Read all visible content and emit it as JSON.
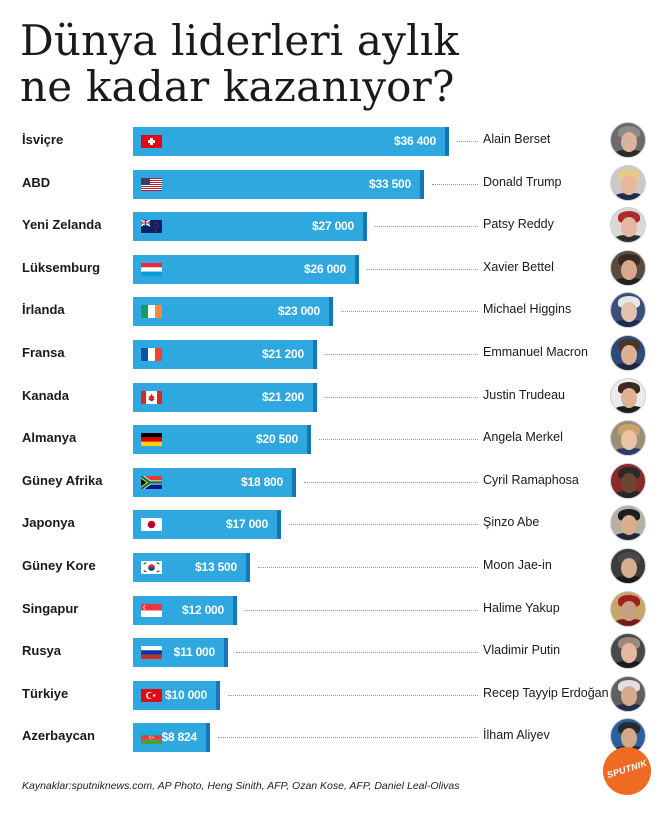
{
  "title": {
    "line1": "Dünya liderleri aylık",
    "line2": "ne kadar kazanıyor?"
  },
  "colors": {
    "bar": "#2ea8df",
    "bar_edge": "#1577b7",
    "text": "#1a1a1a"
  },
  "chart_data": {
    "type": "bar",
    "orientation": "horizontal",
    "unit": "$",
    "xlim": [
      0,
      36400
    ],
    "grid": false,
    "categories": [
      "İsviçre",
      "ABD",
      "Yeni Zelanda",
      "Lüksemburg",
      "İrlanda",
      "Fransa",
      "Kanada",
      "Almanya",
      "Güney Afrika",
      "Japonya",
      "Güney Kore",
      "Singapur",
      "Rusya",
      "Türkiye",
      "Azerbaycan"
    ],
    "values": [
      36400,
      33500,
      27000,
      26000,
      23000,
      21200,
      21200,
      20500,
      18800,
      17000,
      13500,
      12000,
      11000,
      10000,
      8824
    ],
    "value_labels": [
      "$36 400",
      "$33 500",
      "$27 000",
      "$26 000",
      "$23 000",
      "$21 200",
      "$21 200",
      "$20 500",
      "$18 800",
      "$17 000",
      "$13 500",
      "$12 000",
      "$11 000",
      "$10 000",
      "$8 824"
    ],
    "leaders": [
      "Alain Berset",
      "Donald Trump",
      "Patsy Reddy",
      "Xavier Bettel",
      "Michael Higgins",
      "Emmanuel Macron",
      "Justin Trudeau",
      "Angela Merkel",
      "Cyril Ramaphosa",
      "Şinzo Abe",
      "Moon Jae-in",
      "Halime Yakup",
      "Vladimir Putin",
      "Recep Tayyip Erdoğan",
      "İlham Aliyev"
    ],
    "flags": [
      "flag-switzerland",
      "flag-usa",
      "flag-new-zealand",
      "flag-luxembourg",
      "flag-ireland",
      "flag-france",
      "flag-canada",
      "flag-germany",
      "flag-south-africa",
      "flag-japan",
      "flag-south-korea",
      "flag-singapore",
      "flag-russia",
      "flag-turkey",
      "flag-azerbaijan"
    ],
    "avatar_tones": [
      {
        "skin": "#d9b39a",
        "hair": "#8d8d8d",
        "suit": "#2b2b2b",
        "bg": "#6b6b6b"
      },
      {
        "skin": "#e7b89a",
        "hair": "#e8c98a",
        "suit": "#1f2d4a",
        "bg": "#c9c9c9"
      },
      {
        "skin": "#e3b7a0",
        "hair": "#b02a2a",
        "suit": "#2d2d2d",
        "bg": "#d9d9d9"
      },
      {
        "skin": "#d8a88c",
        "hair": "#3a2a20",
        "suit": "#222222",
        "bg": "#5a4a40"
      },
      {
        "skin": "#e4c0ad",
        "hair": "#e6e6e6",
        "suit": "#1c2a52",
        "bg": "#3a4f7a"
      },
      {
        "skin": "#dcb093",
        "hair": "#4a3526",
        "suit": "#1e2640",
        "bg": "#2f4a7a"
      },
      {
        "skin": "#e0b293",
        "hair": "#3b2a1f",
        "suit": "#1d1d1d",
        "bg": "#ebebeb"
      },
      {
        "skin": "#e8c3a4",
        "hair": "#c9a36b",
        "suit": "#2c3c6a",
        "bg": "#9a8e78"
      },
      {
        "skin": "#6b4633",
        "hair": "#2a2a2a",
        "suit": "#252525",
        "bg": "#8a2b2b"
      },
      {
        "skin": "#d9ae8f",
        "hair": "#1e1e1e",
        "suit": "#222a3a",
        "bg": "#b7b0a5"
      },
      {
        "skin": "#d6ad8e",
        "hair": "#4a4a4a",
        "suit": "#1a1a1a",
        "bg": "#3b3b3b"
      },
      {
        "skin": "#caa083",
        "hair": "#a02020",
        "suit": "#7a1a1a",
        "bg": "#c7a66a"
      },
      {
        "skin": "#e2b8a0",
        "hair": "#9a8a7a",
        "suit": "#1c1c1c",
        "bg": "#4a4a4a"
      },
      {
        "skin": "#d8ab8e",
        "hair": "#e0e0e0",
        "suit": "#22304a",
        "bg": "#606060"
      },
      {
        "skin": "#d4a88a",
        "hair": "#2a2a2a",
        "suit": "#1d2a4a",
        "bg": "#2a5fa0"
      }
    ]
  },
  "source": "Kaynaklar:sputniknews.com, AP Photo, Heng Sinith, AFP, Ozan Kose, AFP, Daniel Leal-Olivas",
  "logo": {
    "text": "SPUTNIK",
    "color": "#ef6b24"
  }
}
